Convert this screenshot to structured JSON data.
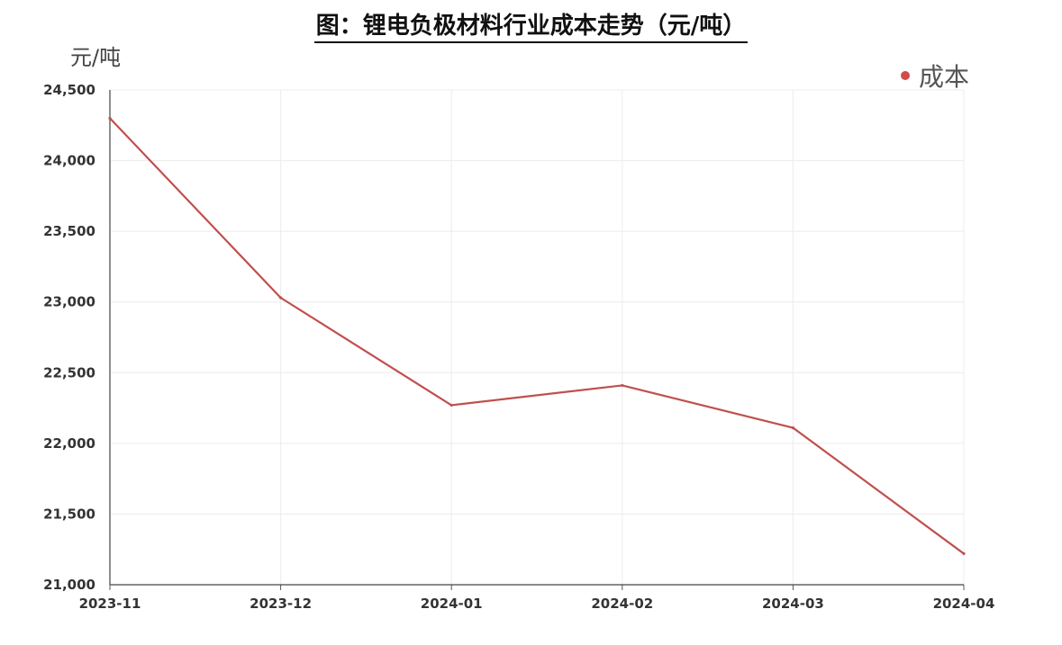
{
  "chart_data": {
    "type": "line",
    "title": "图：锂电负极材料行业成本走势（元/吨）",
    "ylabel": "元/吨",
    "xlabel": "",
    "x": [
      "2023-11",
      "2023-12",
      "2024-01",
      "2024-02",
      "2024-03",
      "2024-04"
    ],
    "series": [
      {
        "name": "成本",
        "values": [
          24300,
          23030,
          22270,
          22410,
          22110,
          21220
        ],
        "color": "#c0504d"
      }
    ],
    "ylim": [
      21000,
      24500
    ],
    "yticks": [
      21000,
      21500,
      22000,
      22500,
      23000,
      23500,
      24000,
      24500
    ],
    "ytick_labels": [
      "21,000",
      "21,500",
      "22,000",
      "22,500",
      "23,000",
      "23,500",
      "24,000",
      "24,500"
    ],
    "grid": true,
    "legend_position": "top-right"
  }
}
